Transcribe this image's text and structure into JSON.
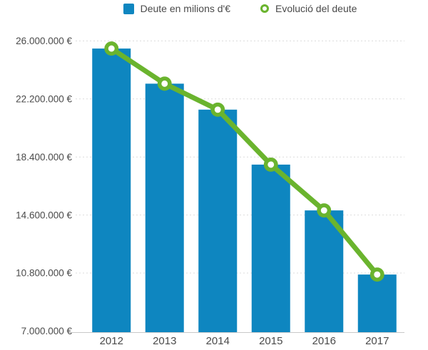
{
  "legend": {
    "items": [
      {
        "label": "Deute en milions d'€",
        "marker": "square-icon",
        "color": "#0e86c0"
      },
      {
        "label": "Evolució del deute",
        "marker": "ring-icon",
        "color": "#6ab42e"
      }
    ]
  },
  "chart_data": {
    "type": "bar",
    "title": "",
    "xlabel": "",
    "ylabel": "",
    "categories": [
      "2012",
      "2013",
      "2014",
      "2015",
      "2016",
      "2017"
    ],
    "series": [
      {
        "name": "Deute en milions d'€",
        "type": "bar",
        "color": "#0e86c0",
        "values": [
          25500000,
          23200000,
          21500000,
          17900000,
          14900000,
          10700000
        ]
      },
      {
        "name": "Evolució del deute",
        "type": "line",
        "color": "#6ab42e",
        "marker": "open-circle",
        "values": [
          25500000,
          23200000,
          21500000,
          17900000,
          14900000,
          10700000
        ]
      }
    ],
    "ylim": [
      7000000,
      26000000
    ],
    "yticks": [
      7000000,
      10800000,
      14600000,
      18400000,
      22200000,
      26000000
    ],
    "ytick_labels": [
      "7.000.000 €",
      "10.800.000 €",
      "14.600.000 €",
      "18.400.000 €",
      "22.200.000 €",
      "26.000.000 €"
    ],
    "grid": "horizontal-dotted",
    "legend_position": "top",
    "colors": {
      "bar": "#0e86c0",
      "line": "#6ab42e",
      "gridline": "#dcdcdc",
      "axis_line": "#c9c9c9",
      "text": "#4a4a4a",
      "background": "#ffffff"
    }
  }
}
